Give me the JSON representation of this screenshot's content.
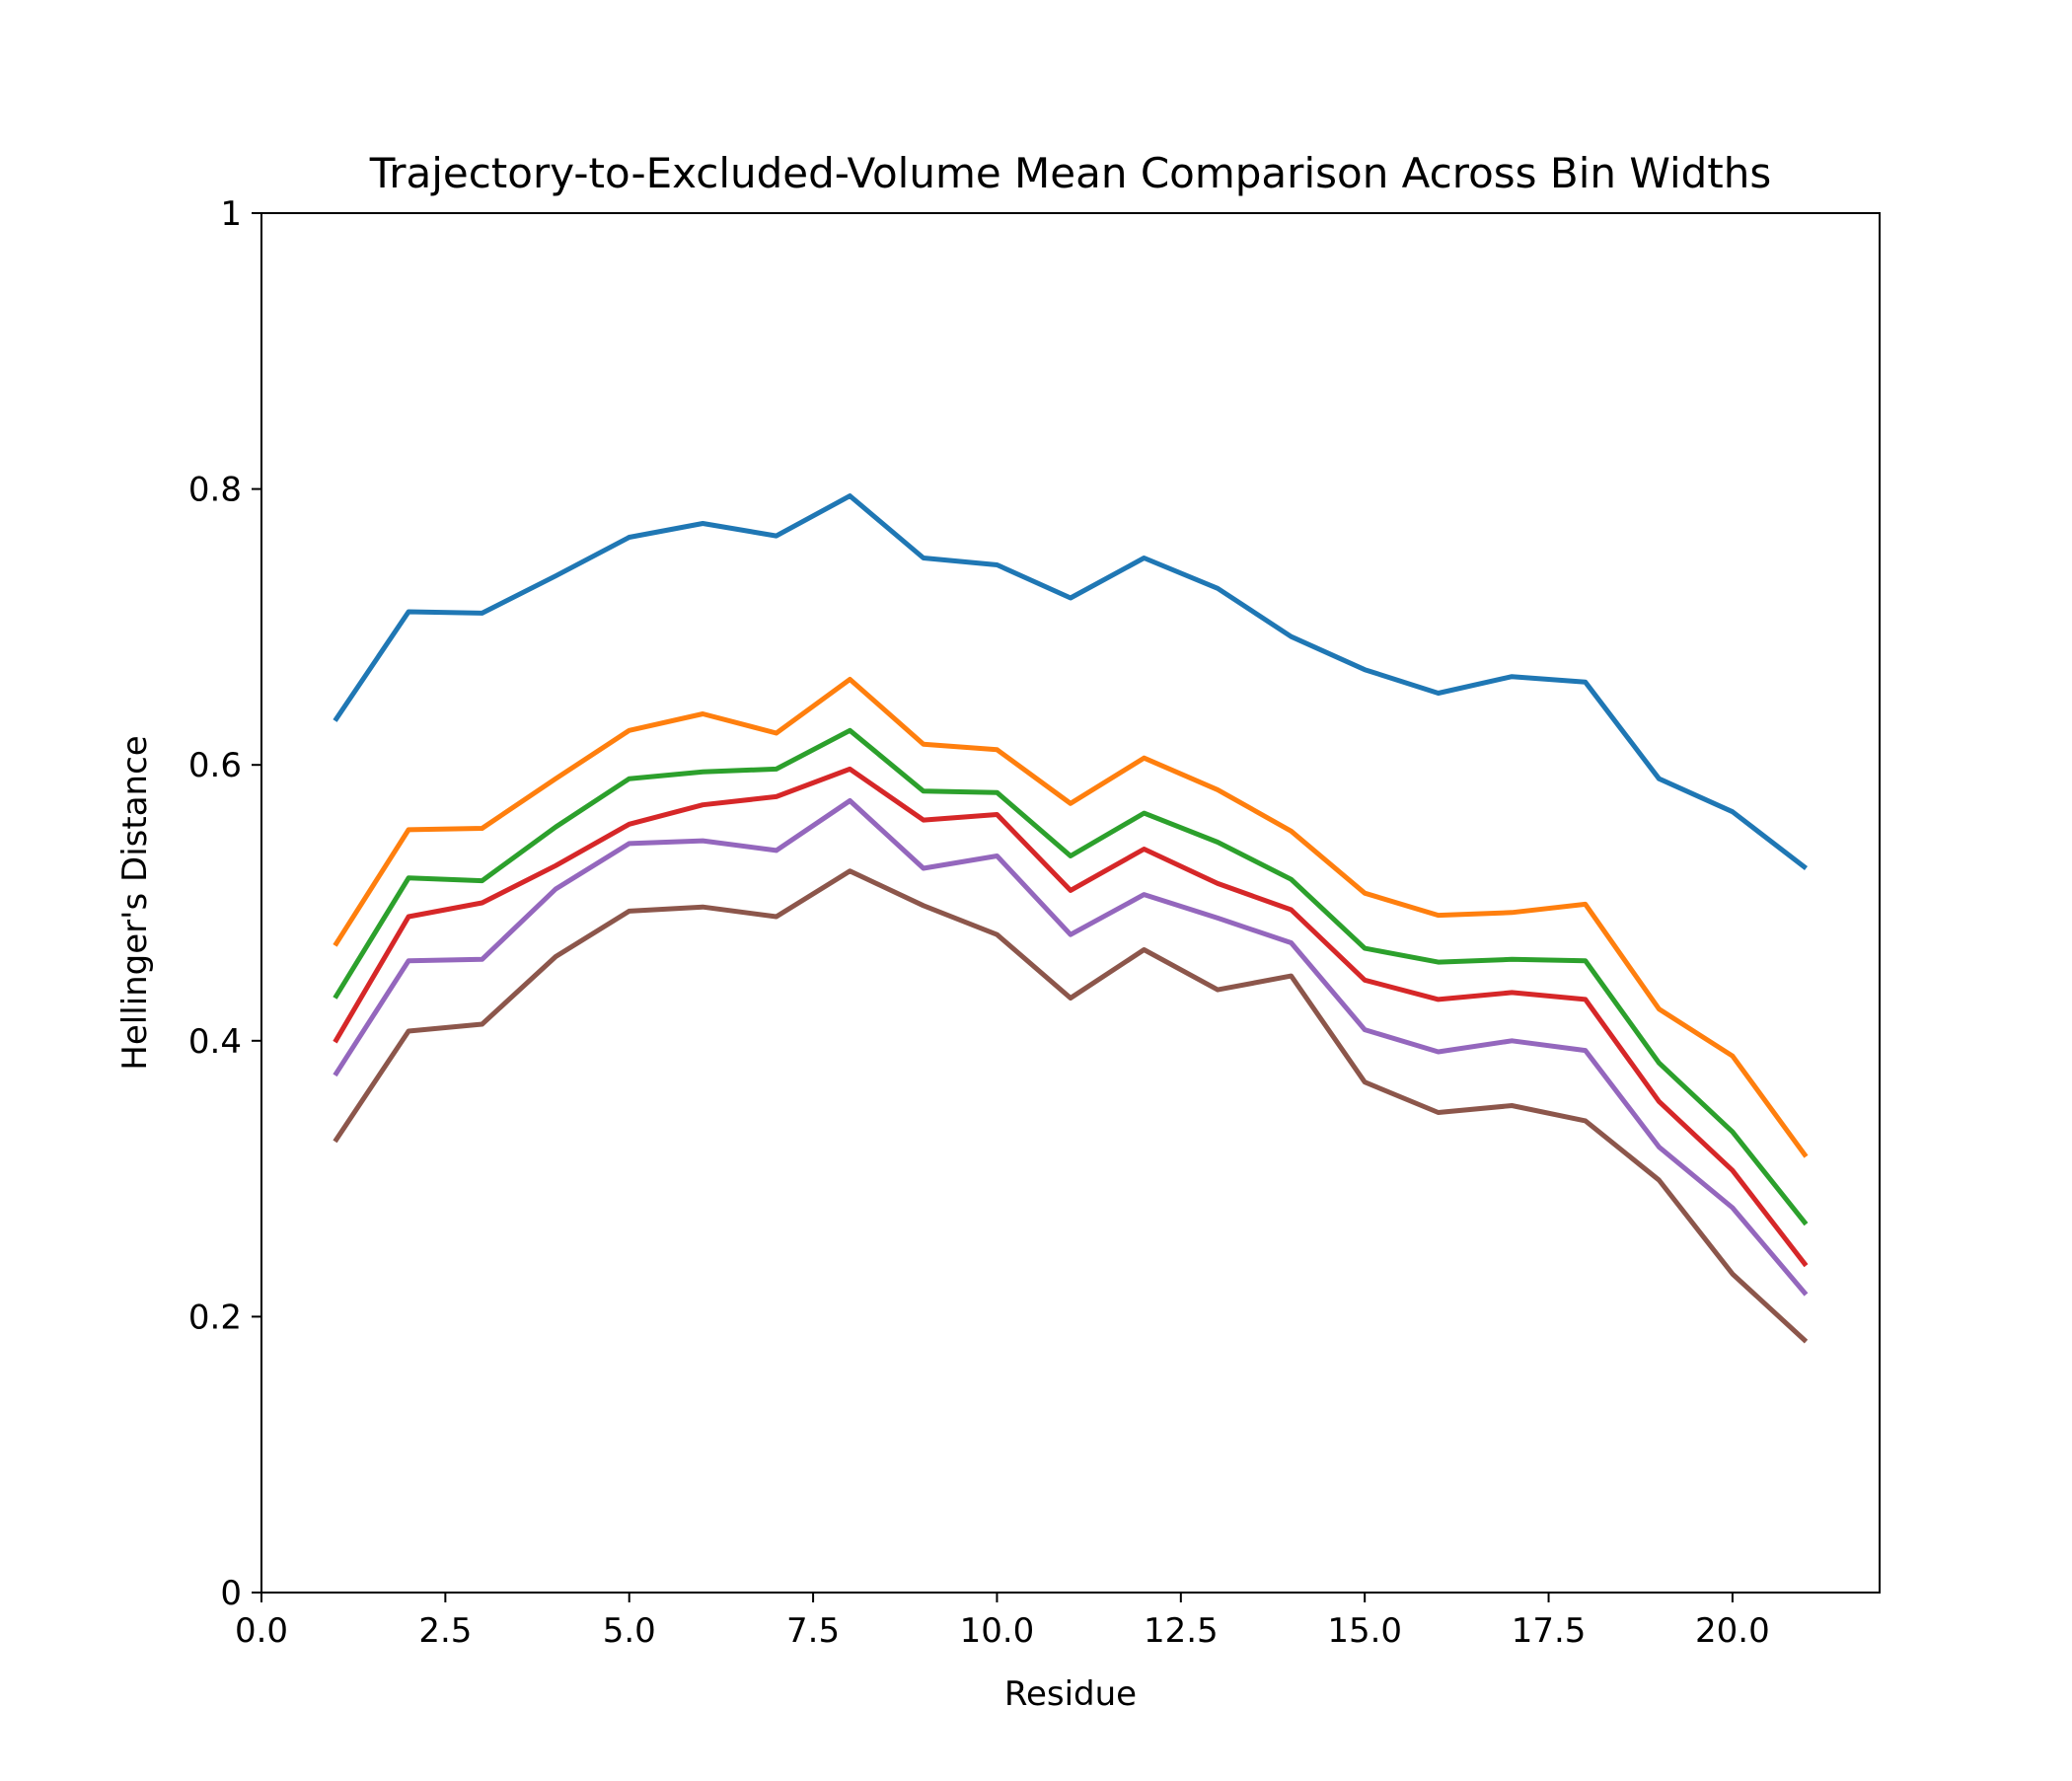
{
  "chart_data": {
    "type": "line",
    "title": "Trajectory-to-Excluded-Volume Mean Comparison Across Bin Widths",
    "xlabel": "Residue",
    "ylabel": "Hellinger's Distance",
    "xlim": [
      0,
      22
    ],
    "ylim": [
      0,
      1
    ],
    "xticks": [
      "0.0",
      "2.5",
      "5.0",
      "7.5",
      "10.0",
      "12.5",
      "15.0",
      "17.5",
      "20.0"
    ],
    "xtick_values": [
      0,
      2.5,
      5,
      7.5,
      10,
      12.5,
      15,
      17.5,
      20
    ],
    "yticks": [
      "0",
      "0.2",
      "0.4",
      "0.6",
      "0.8",
      "1"
    ],
    "ytick_values": [
      0,
      0.2,
      0.4,
      0.6,
      0.8,
      1
    ],
    "grid": false,
    "legend": "none",
    "x": [
      1,
      2,
      3,
      4,
      5,
      6,
      7,
      8,
      9,
      10,
      11,
      12,
      13,
      14,
      15,
      16,
      17,
      18,
      19,
      20,
      21
    ],
    "series": [
      {
        "color": "#1f77b4",
        "values": [
          0.632,
          0.711,
          0.71,
          0.737,
          0.765,
          0.775,
          0.766,
          0.795,
          0.75,
          0.745,
          0.721,
          0.75,
          0.728,
          0.693,
          0.669,
          0.652,
          0.664,
          0.66,
          0.59,
          0.566,
          0.525
        ]
      },
      {
        "color": "#ff7f0e",
        "values": [
          0.469,
          0.553,
          0.554,
          0.59,
          0.625,
          0.637,
          0.623,
          0.662,
          0.615,
          0.611,
          0.572,
          0.605,
          0.582,
          0.552,
          0.507,
          0.491,
          0.493,
          0.499,
          0.423,
          0.389,
          0.316
        ]
      },
      {
        "color": "#2ca02c",
        "values": [
          0.431,
          0.518,
          0.516,
          0.555,
          0.59,
          0.595,
          0.597,
          0.625,
          0.581,
          0.58,
          0.534,
          0.565,
          0.544,
          0.517,
          0.467,
          0.457,
          0.459,
          0.458,
          0.384,
          0.334,
          0.267
        ]
      },
      {
        "color": "#d62728",
        "values": [
          0.399,
          0.49,
          0.5,
          0.527,
          0.557,
          0.571,
          0.577,
          0.597,
          0.56,
          0.564,
          0.509,
          0.539,
          0.514,
          0.495,
          0.444,
          0.43,
          0.435,
          0.43,
          0.356,
          0.306,
          0.237
        ]
      },
      {
        "color": "#9467bd",
        "values": [
          0.375,
          0.458,
          0.459,
          0.51,
          0.543,
          0.545,
          0.538,
          0.574,
          0.525,
          0.534,
          0.477,
          0.506,
          0.489,
          0.471,
          0.408,
          0.392,
          0.4,
          0.393,
          0.323,
          0.279,
          0.216
        ]
      },
      {
        "color": "#8c564b",
        "values": [
          0.327,
          0.407,
          0.412,
          0.461,
          0.494,
          0.497,
          0.49,
          0.523,
          0.498,
          0.477,
          0.431,
          0.466,
          0.437,
          0.447,
          0.37,
          0.348,
          0.353,
          0.342,
          0.299,
          0.231,
          0.182
        ]
      }
    ]
  }
}
